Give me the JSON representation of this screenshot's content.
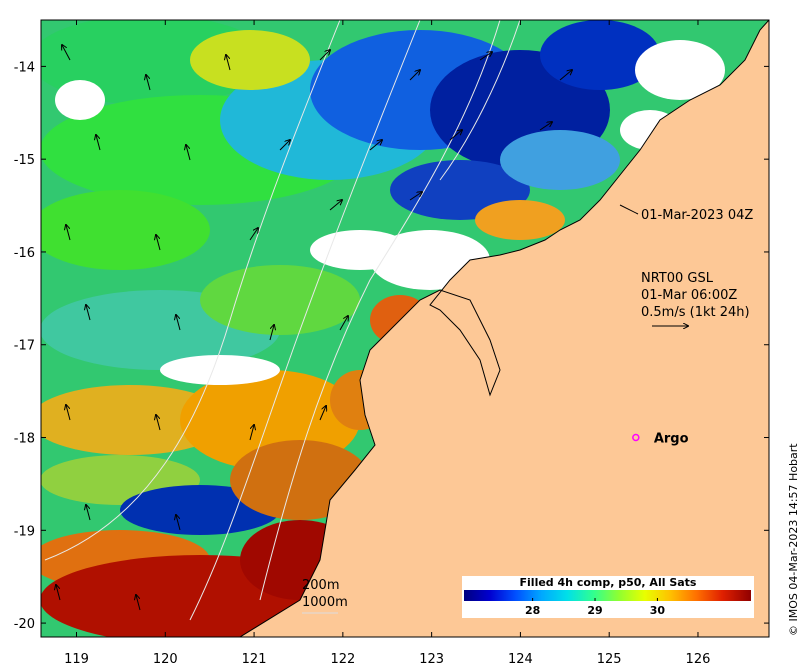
{
  "map": {
    "x_ticks": [
      119,
      120,
      121,
      122,
      123,
      124,
      125,
      126
    ],
    "y_ticks": [
      -14,
      -15,
      -16,
      -17,
      -18,
      -19,
      -20
    ],
    "x_range": [
      118.6,
      126.8
    ],
    "y_range": [
      -20.15,
      -13.5
    ],
    "land_color": "#fdc896",
    "coast_color": "#000000",
    "contour_color": "#dddddd"
  },
  "annotations": {
    "timestamp": "01-Mar-2023 04Z",
    "product": "NRT00 GSL",
    "model_time": "01-Mar 06:00Z",
    "speed_ref": "0.5m/s (1kt 24h)"
  },
  "isobaths": {
    "label_200": "200m",
    "label_1000": "1000m"
  },
  "argo": {
    "label": "Argo",
    "lon": 125.3,
    "lat": -18.0,
    "marker_color": "#ff00ff"
  },
  "colorbar": {
    "title": "Filled 4h comp, p50, All Sats",
    "tick_labels": [
      "28",
      "29",
      "30"
    ],
    "ticks": [
      28,
      29,
      30
    ],
    "range": [
      26.9,
      31.5
    ],
    "colors": [
      "#00007f",
      "#0000d0",
      "#0050ff",
      "#00a8ff",
      "#00e0e8",
      "#30ff90",
      "#90ff30",
      "#e8ff00",
      "#ffc000",
      "#ff7000",
      "#e02000",
      "#900000"
    ]
  },
  "credit": "© IMOS 04-Mar-2023 14:57 Hobart"
}
